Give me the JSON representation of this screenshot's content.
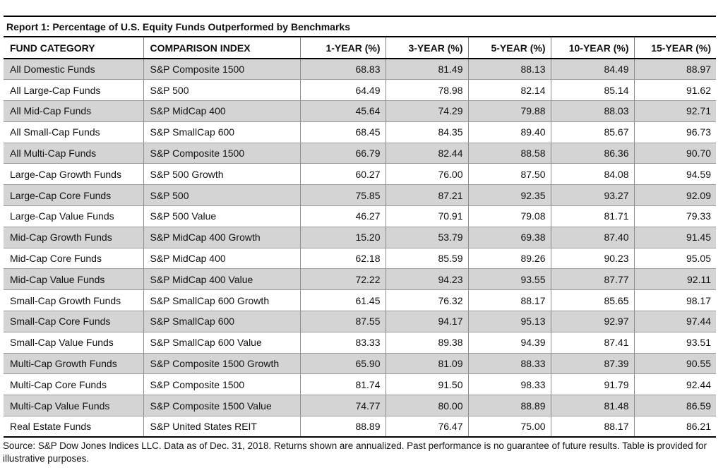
{
  "report": {
    "title": "Report 1: Percentage of U.S. Equity Funds Outperformed by Benchmarks",
    "headers": [
      "FUND CATEGORY",
      "COMPARISON INDEX",
      "1-YEAR (%)",
      "3-YEAR (%)",
      "5-YEAR (%)",
      "10-YEAR (%)",
      "15-YEAR (%)"
    ],
    "rows": [
      [
        "All Domestic Funds",
        "S&P Composite 1500",
        "68.83",
        "81.49",
        "88.13",
        "84.49",
        "88.97"
      ],
      [
        "All Large-Cap Funds",
        "S&P 500",
        "64.49",
        "78.98",
        "82.14",
        "85.14",
        "91.62"
      ],
      [
        "All Mid-Cap Funds",
        "S&P MidCap 400",
        "45.64",
        "74.29",
        "79.88",
        "88.03",
        "92.71"
      ],
      [
        "All Small-Cap Funds",
        "S&P SmallCap 600",
        "68.45",
        "84.35",
        "89.40",
        "85.67",
        "96.73"
      ],
      [
        "All Multi-Cap Funds",
        "S&P Composite 1500",
        "66.79",
        "82.44",
        "88.58",
        "86.36",
        "90.70"
      ],
      [
        "Large-Cap Growth Funds",
        "S&P 500 Growth",
        "60.27",
        "76.00",
        "87.50",
        "84.08",
        "94.59"
      ],
      [
        "Large-Cap Core Funds",
        "S&P 500",
        "75.85",
        "87.21",
        "92.35",
        "93.27",
        "92.09"
      ],
      [
        "Large-Cap Value Funds",
        "S&P 500 Value",
        "46.27",
        "70.91",
        "79.08",
        "81.71",
        "79.33"
      ],
      [
        "Mid-Cap Growth Funds",
        "S&P MidCap 400 Growth",
        "15.20",
        "53.79",
        "69.38",
        "87.40",
        "91.45"
      ],
      [
        "Mid-Cap Core Funds",
        "S&P MidCap 400",
        "62.18",
        "85.59",
        "89.26",
        "90.23",
        "95.05"
      ],
      [
        "Mid-Cap Value Funds",
        "S&P MidCap 400 Value",
        "72.22",
        "94.23",
        "93.55",
        "87.77",
        "92.11"
      ],
      [
        "Small-Cap Growth Funds",
        "S&P SmallCap 600 Growth",
        "61.45",
        "76.32",
        "88.17",
        "85.65",
        "98.17"
      ],
      [
        "Small-Cap Core Funds",
        "S&P SmallCap 600",
        "87.55",
        "94.17",
        "95.13",
        "92.97",
        "97.44"
      ],
      [
        "Small-Cap Value Funds",
        "S&P SmallCap 600 Value",
        "83.33",
        "89.38",
        "94.39",
        "87.41",
        "93.51"
      ],
      [
        "Multi-Cap Growth Funds",
        "S&P Composite 1500 Growth",
        "65.90",
        "81.09",
        "88.33",
        "87.39",
        "90.55"
      ],
      [
        "Multi-Cap Core Funds",
        "S&P Composite 1500",
        "81.74",
        "91.50",
        "98.33",
        "91.79",
        "92.44"
      ],
      [
        "Multi-Cap Value Funds",
        "S&P Composite 1500 Value",
        "74.77",
        "80.00",
        "88.89",
        "81.48",
        "86.59"
      ],
      [
        "Real Estate Funds",
        "S&P United States REIT",
        "88.89",
        "76.47",
        "75.00",
        "88.17",
        "86.21"
      ]
    ],
    "footnote": "Source: S&P Dow Jones Indices LLC.  Data as of Dec. 31, 2018.  Returns shown are annualized.  Past performance is no guarantee of future results.  Table is provided for illustrative purposes.",
    "colors": {
      "shade": "#d4d4d4",
      "rule": "#000000"
    }
  }
}
